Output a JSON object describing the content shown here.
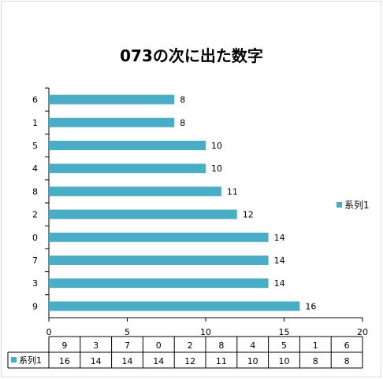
{
  "chart_data": {
    "type": "bar",
    "orientation": "horizontal",
    "title": "073の次に出た数字",
    "categories": [
      "9",
      "3",
      "7",
      "0",
      "2",
      "8",
      "4",
      "5",
      "1",
      "6"
    ],
    "series": [
      {
        "name": "系列1",
        "values": [
          16,
          14,
          14,
          14,
          12,
          11,
          10,
          10,
          8,
          8
        ]
      }
    ],
    "xlim": [
      0,
      20
    ],
    "x_ticks": [
      0,
      5,
      10,
      15,
      20
    ],
    "grid": false,
    "legend_position": "right",
    "data_table": true,
    "colors": {
      "bar": "#4bacc6",
      "axis": "#000000",
      "border": "#d9d9d9"
    }
  }
}
